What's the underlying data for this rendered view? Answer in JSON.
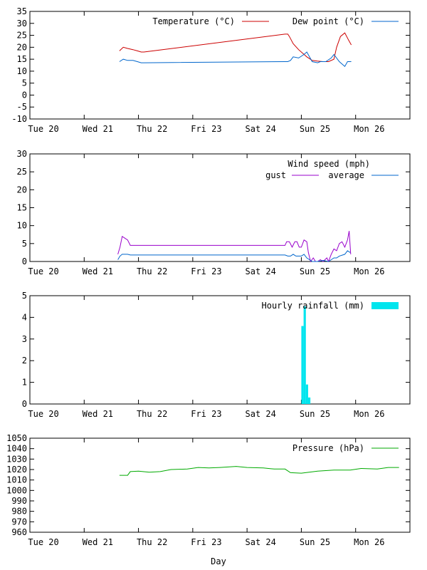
{
  "x_ticks": [
    "Tue 20",
    "Wed 21",
    "Thu 22",
    "Fri 23",
    "Sat 24",
    "Sun 25",
    "Mon 26"
  ],
  "xlabel": "Day",
  "chart_data": [
    {
      "type": "line",
      "ylim": [
        -10,
        35
      ],
      "yticks": [
        -10,
        -5,
        0,
        5,
        10,
        15,
        20,
        25,
        30,
        35
      ],
      "legend_title": "",
      "series": [
        {
          "name": "Temperature (°C)",
          "color": "#cc0000",
          "x": [
            1.65,
            1.72,
            1.8,
            1.9,
            1.98,
            2.05,
            2.1,
            4.7,
            4.75,
            4.78,
            4.85,
            4.95,
            5.05,
            5.1,
            5.2,
            5.3,
            5.4,
            5.5,
            5.6,
            5.65,
            5.72,
            5.8,
            5.87,
            5.92
          ],
          "y": [
            18.5,
            20,
            19.5,
            19,
            18.5,
            18,
            18,
            25.5,
            25.5,
            24.5,
            21.5,
            19,
            17,
            16,
            14.5,
            14.2,
            14,
            14,
            15,
            20,
            24.5,
            26,
            23,
            21
          ]
        },
        {
          "name": "Dew point (°C)",
          "color": "#0066cc",
          "x": [
            1.65,
            1.72,
            1.8,
            1.9,
            1.98,
            2.05,
            2.1,
            4.7,
            4.75,
            4.8,
            4.85,
            4.95,
            5.05,
            5.1,
            5.2,
            5.3,
            5.35,
            5.45,
            5.55,
            5.6,
            5.7,
            5.8,
            5.85,
            5.92
          ],
          "y": [
            14,
            15,
            14.5,
            14.5,
            14,
            13.5,
            13.5,
            14,
            14,
            14.5,
            16,
            15.5,
            17,
            18,
            14,
            13.5,
            14,
            14,
            15.5,
            17,
            14,
            12,
            14,
            14
          ]
        }
      ]
    },
    {
      "type": "line",
      "ylim": [
        0,
        30
      ],
      "yticks": [
        0,
        5,
        10,
        15,
        20,
        25,
        30
      ],
      "legend_title": "Wind speed (mph)",
      "series": [
        {
          "name": "gust",
          "color": "#9900cc",
          "x": [
            1.62,
            1.66,
            1.7,
            1.75,
            1.8,
            1.85,
            4.7,
            4.73,
            4.78,
            4.83,
            4.88,
            4.92,
            4.96,
            5.0,
            5.05,
            5.1,
            5.13,
            5.17,
            5.22,
            5.26,
            5.3,
            5.35,
            5.4,
            5.47,
            5.5,
            5.55,
            5.6,
            5.65,
            5.7,
            5.75,
            5.8,
            5.85,
            5.88,
            5.91
          ],
          "y": [
            2,
            4,
            7,
            6.5,
            6,
            4.5,
            4.5,
            5.5,
            5.5,
            4,
            5.5,
            5.5,
            4,
            4,
            6,
            5.5,
            2.5,
            0,
            1,
            0,
            0,
            0.5,
            0,
            1,
            0,
            2,
            3.5,
            3,
            5,
            5.5,
            4,
            6,
            8.5,
            2
          ]
        },
        {
          "name": "average",
          "color": "#0066cc",
          "x": [
            1.62,
            1.66,
            1.7,
            1.75,
            1.8,
            1.85,
            4.7,
            4.75,
            4.8,
            4.85,
            4.9,
            5.0,
            5.05,
            5.1,
            5.15,
            5.2,
            5.25,
            5.3,
            5.4,
            5.5,
            5.55,
            5.6,
            5.65,
            5.7,
            5.8,
            5.85,
            5.9
          ],
          "y": [
            0.5,
            1.5,
            2,
            2,
            2,
            1.8,
            1.8,
            1.5,
            1.5,
            2,
            1.5,
            1.5,
            2,
            1,
            0.5,
            0,
            0,
            0,
            0.3,
            0,
            0.5,
            1,
            1,
            1.5,
            2,
            3,
            2.5
          ]
        }
      ]
    },
    {
      "type": "bar",
      "ylim": [
        0,
        5
      ],
      "yticks": [
        0,
        1,
        2,
        3,
        4,
        5
      ],
      "legend_title": "",
      "series": [
        {
          "name": "Hourly rainfall (mm)",
          "color": "#00e5ee",
          "x": [
            5.0,
            5.0417,
            5.0833,
            5.125
          ],
          "y": [
            3.6,
            4.5,
            0.9,
            0.3
          ]
        }
      ]
    },
    {
      "type": "line",
      "ylim": [
        960,
        1050
      ],
      "yticks": [
        960,
        970,
        980,
        990,
        1000,
        1010,
        1020,
        1030,
        1040,
        1050
      ],
      "legend_title": "",
      "series": [
        {
          "name": "Pressure (hPa)",
          "color": "#00aa00",
          "x": [
            1.65,
            1.8,
            1.85,
            2.0,
            2.2,
            2.4,
            2.6,
            2.9,
            3.1,
            3.3,
            3.5,
            3.8,
            4.0,
            4.3,
            4.5,
            4.6,
            4.7,
            4.8,
            5.0,
            5.3,
            5.6,
            5.9,
            6.1,
            6.4,
            6.6,
            6.8
          ],
          "y": [
            1014.5,
            1014.5,
            1018,
            1018.5,
            1017.5,
            1018,
            1020,
            1020.5,
            1022,
            1021.5,
            1022,
            1023,
            1022,
            1021.5,
            1020.5,
            1020.5,
            1020.5,
            1017,
            1016.5,
            1018.5,
            1019.5,
            1019.5,
            1021,
            1020.5,
            1022,
            1022
          ]
        }
      ]
    }
  ]
}
